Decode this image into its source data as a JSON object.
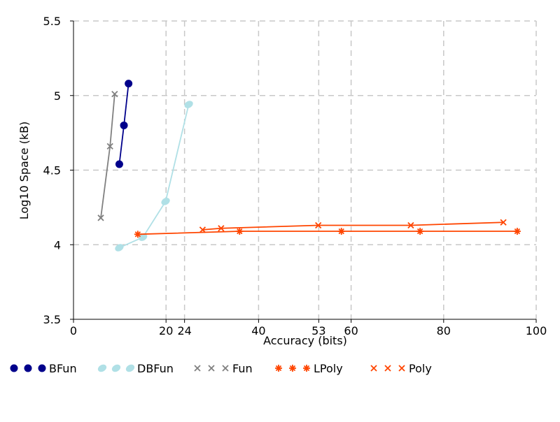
{
  "chart_data": {
    "type": "line",
    "title": "",
    "xlabel": "Accuracy (bits)",
    "ylabel": "Log10 Space (kB)",
    "xlim": [
      0,
      100
    ],
    "ylim": [
      3.5,
      5.5
    ],
    "x_ticks": [
      0,
      20,
      24,
      40,
      53,
      60,
      80,
      100
    ],
    "x_tick_labels": [
      "0",
      "20",
      "24",
      "40",
      "53",
      "60",
      "80",
      "100"
    ],
    "y_ticks": [
      3.5,
      4,
      4.5,
      5,
      5.5
    ],
    "y_tick_labels": [
      "3.5",
      "4",
      "4.5",
      "5",
      "5.5"
    ],
    "grid": true,
    "legend_position": "bottom",
    "series": [
      {
        "name": "BFun",
        "color": "#00008b",
        "marker": "dot",
        "points": [
          [
            9.9,
            4.54
          ],
          [
            10.9,
            4.8
          ],
          [
            11.9,
            5.08
          ]
        ]
      },
      {
        "name": "DBFun",
        "color": "#b0e0e6",
        "marker": "ellipse",
        "points": [
          [
            9.9,
            3.98
          ],
          [
            15.0,
            4.05
          ],
          [
            19.9,
            4.29
          ],
          [
            24.9,
            4.94
          ]
        ]
      },
      {
        "name": "Fun",
        "color": "#808080",
        "marker": "cross",
        "points": [
          [
            5.9,
            4.18
          ],
          [
            7.9,
            4.66
          ],
          [
            8.9,
            5.01
          ]
        ]
      },
      {
        "name": "LPoly",
        "color": "#ff4500",
        "marker": "asterisk",
        "points": [
          [
            13.9,
            4.07
          ],
          [
            35.9,
            4.09
          ],
          [
            57.9,
            4.09
          ],
          [
            74.9,
            4.09
          ],
          [
            95.9,
            4.09
          ]
        ]
      },
      {
        "name": "Poly",
        "color": "#ff4500",
        "marker": "x",
        "points": [
          [
            27.9,
            4.1
          ],
          [
            31.9,
            4.11
          ],
          [
            52.9,
            4.13
          ],
          [
            72.9,
            4.13
          ],
          [
            92.9,
            4.15
          ]
        ]
      }
    ]
  }
}
